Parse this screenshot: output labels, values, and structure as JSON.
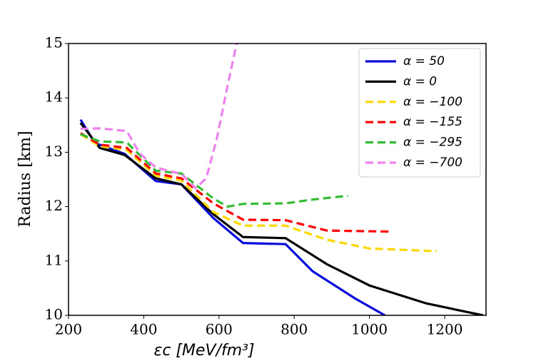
{
  "chart_data": {
    "type": "line",
    "x_label": "εc [MeV/fm³]",
    "y_label": "Radius [km]",
    "xlim": [
      200,
      1310
    ],
    "ylim": [
      10,
      15
    ],
    "xticks": [
      200,
      400,
      600,
      800,
      1000,
      1200
    ],
    "yticks": [
      10,
      11,
      12,
      13,
      14,
      15
    ],
    "legend": "upper right",
    "series": [
      {
        "name": "α = 50",
        "color": "#0b0bdc",
        "linestyle": "solid",
        "x": [
          232,
          270,
          349,
          432,
          500,
          585,
          664,
          777,
          849,
          962,
          1041
        ],
        "values": [
          13.6,
          13.17,
          12.97,
          12.47,
          12.41,
          11.79,
          11.33,
          11.31,
          10.81,
          10.31,
          10.0
        ]
      },
      {
        "name": "α = 0",
        "color": "#000000",
        "linestyle": "solid",
        "x": [
          232,
          283,
          349,
          432,
          500,
          585,
          664,
          777,
          887,
          1000,
          1151,
          1302
        ],
        "values": [
          13.54,
          13.08,
          12.95,
          12.52,
          12.41,
          11.86,
          11.44,
          11.42,
          10.94,
          10.55,
          10.22,
          10.0
        ]
      },
      {
        "name": "α = −100",
        "color": "#ffd700",
        "linestyle": "dashed",
        "x": [
          232,
          283,
          355,
          432,
          500,
          585,
          664,
          777,
          887,
          1000,
          1179
        ],
        "values": [
          13.33,
          13.11,
          13.04,
          12.57,
          12.48,
          11.9,
          11.65,
          11.65,
          11.39,
          11.23,
          11.18
        ]
      },
      {
        "name": "α = −155",
        "color": "#ff0000",
        "linestyle": "dashed",
        "x": [
          232,
          283,
          355,
          432,
          500,
          585,
          664,
          777,
          887,
          1057
        ],
        "values": [
          13.35,
          13.14,
          13.08,
          12.61,
          12.52,
          12.06,
          11.76,
          11.75,
          11.56,
          11.54
        ]
      },
      {
        "name": "α = −295",
        "color": "#33bb33",
        "linestyle": "dashed",
        "x": [
          232,
          283,
          355,
          432,
          500,
          585,
          623,
          664,
          777,
          849,
          943
        ],
        "values": [
          13.33,
          13.2,
          13.18,
          12.66,
          12.61,
          12.15,
          12.0,
          12.05,
          12.06,
          12.13,
          12.2
        ]
      },
      {
        "name": "α = −700",
        "color": "#ee82ee",
        "linestyle": "dashed",
        "x": [
          232,
          283,
          355,
          389,
          432,
          500,
          538,
          566,
          594,
          623,
          647
        ],
        "values": [
          13.43,
          13.44,
          13.39,
          12.98,
          12.72,
          12.6,
          12.34,
          12.52,
          13.24,
          14.23,
          15.0
        ]
      }
    ]
  }
}
